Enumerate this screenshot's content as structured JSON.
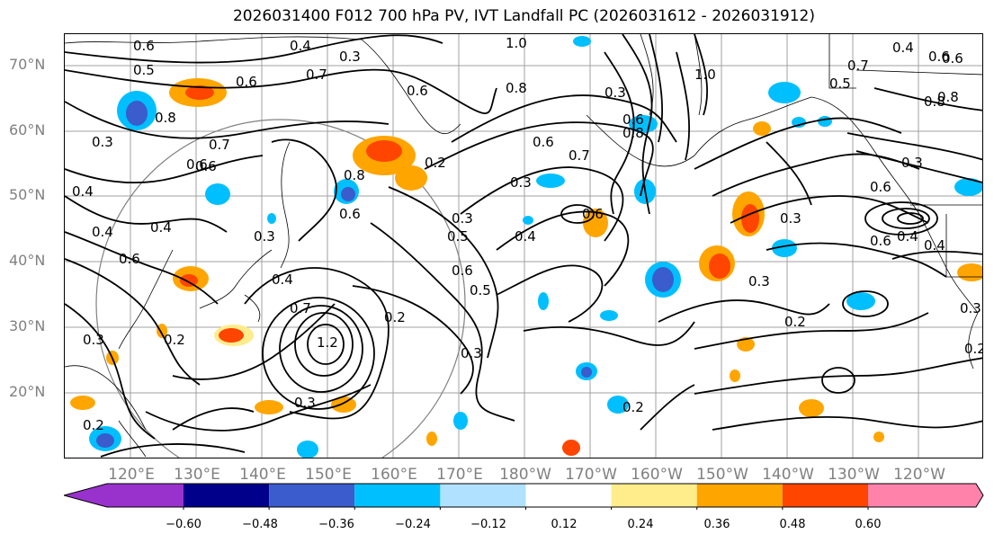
{
  "title": "2026031400 F012 700 hPa PV, IVT Landfall PC (2026031612 - 2026031912)",
  "map": {
    "lat_labels": [
      "70°N",
      "60°N",
      "50°N",
      "40°N",
      "30°N",
      "20°N"
    ],
    "lon_labels": [
      "120°E",
      "130°E",
      "140°E",
      "150°E",
      "160°E",
      "170°E",
      "180°W",
      "170°W",
      "160°W",
      "150°W",
      "140°W",
      "130°W",
      "120°W"
    ],
    "contour_labels": [
      "0.6",
      "0.5",
      "0.4",
      "0.3",
      "1.0",
      "0.7",
      "0.6",
      "0.8",
      "0.6",
      "0.8",
      "0.3",
      "0.6",
      "0.7",
      "0.3",
      "1.0",
      "0.6",
      "0.4",
      "0.6",
      "0.8",
      "0.6",
      "0.7",
      "0.2",
      "0.8",
      "0.3",
      "0.4",
      "0.6",
      "0.4",
      "0.3",
      "0.3",
      "0.6",
      "0.4",
      "0.5",
      "0.6",
      "0.5",
      "0.6",
      "0.4",
      "0.2",
      "1.2",
      "0.7",
      "0.3",
      "0.2",
      "0.2",
      "0.3",
      "0.2",
      "0.3",
      "0.2",
      "0.3",
      "0.6",
      "0.6",
      "0.4",
      "0.5",
      "0.3",
      "0.8",
      "0.7",
      "0.3",
      "0.4",
      "0.6",
      "0.4",
      "0.3",
      "0.2",
      "0.8",
      "0.6"
    ]
  },
  "colorbar": {
    "ticks": [
      "−0.60",
      "−0.48",
      "−0.36",
      "−0.24",
      "−0.12",
      "0.12",
      "0.24",
      "0.36",
      "0.48",
      "0.60"
    ],
    "colors": [
      "#9932cc",
      "#00008b",
      "#3a5ccc",
      "#00bfff",
      "#b0e2ff",
      "#ffffff",
      "#ffec8b",
      "#ffa500",
      "#ff4500",
      "#b22222",
      "#ff82ab"
    ]
  }
}
